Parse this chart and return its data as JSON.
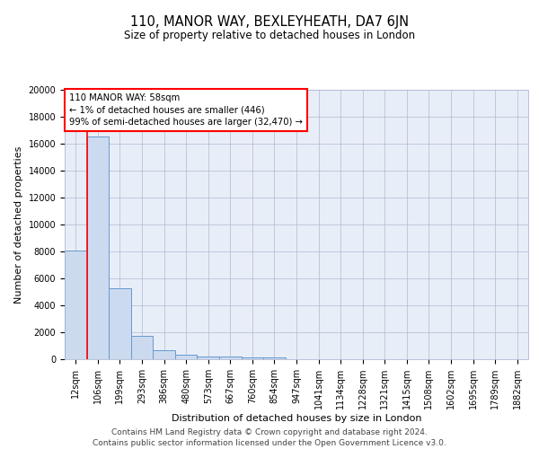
{
  "title1": "110, MANOR WAY, BEXLEYHEATH, DA7 6JN",
  "title2": "Size of property relative to detached houses in London",
  "xlabel": "Distribution of detached houses by size in London",
  "ylabel": "Number of detached properties",
  "bar_labels": [
    "12sqm",
    "106sqm",
    "199sqm",
    "293sqm",
    "386sqm",
    "480sqm",
    "573sqm",
    "667sqm",
    "760sqm",
    "854sqm",
    "947sqm",
    "1041sqm",
    "1134sqm",
    "1228sqm",
    "1321sqm",
    "1415sqm",
    "1508sqm",
    "1602sqm",
    "1695sqm",
    "1789sqm",
    "1882sqm"
  ],
  "bar_values": [
    8100,
    16500,
    5300,
    1750,
    700,
    330,
    230,
    185,
    165,
    120,
    0,
    0,
    0,
    0,
    0,
    0,
    0,
    0,
    0,
    0,
    0
  ],
  "bar_color": "#ccdaf0",
  "bar_edge_color": "#6699cc",
  "background_color": "#e8eef8",
  "ylim": [
    0,
    20000
  ],
  "red_line_x": 0.5,
  "annotation_line1": "110 MANOR WAY: 58sqm",
  "annotation_line2": "← 1% of detached houses are smaller (446)",
  "annotation_line3": "99% of semi-detached houses are larger (32,470) →",
  "footer": "Contains HM Land Registry data © Crown copyright and database right 2024.\nContains public sector information licensed under the Open Government Licence v3.0.",
  "title1_fontsize": 10.5,
  "title2_fontsize": 8.5,
  "ylabel_fontsize": 8,
  "xlabel_fontsize": 8,
  "tick_fontsize": 7,
  "footer_fontsize": 6.5
}
